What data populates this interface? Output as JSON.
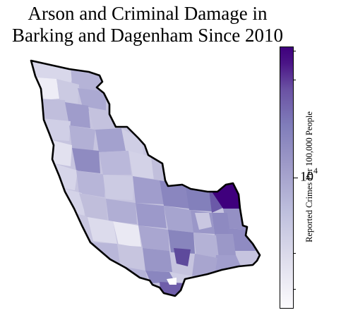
{
  "title": {
    "line1": "Arson and Criminal Damage in",
    "line2": "Barking and Dagenham Since 2010"
  },
  "colorbar": {
    "label": "Reported Crimes Per 100,000 People",
    "major_tick_base": "10",
    "major_tick_exponent": "4",
    "scale": "log",
    "colormap": "Purples",
    "colors": [
      "#fcfbfd",
      "#dcdbeb",
      "#bcbddc",
      "#9e9ac8",
      "#807dba",
      "#6a51a3",
      "#4a1486",
      "#3f007d"
    ]
  },
  "map": {
    "boundary_color": "#000000",
    "region_colors": {
      "very_low": "#f0eef6",
      "low": "#d6d5e8",
      "mid_low": "#c2c0dd",
      "mid": "#aaa8d1",
      "mid_high": "#9593c5",
      "high": "#7b73b6",
      "very_high": "#5c3d96",
      "max": "#3f007d"
    }
  }
}
